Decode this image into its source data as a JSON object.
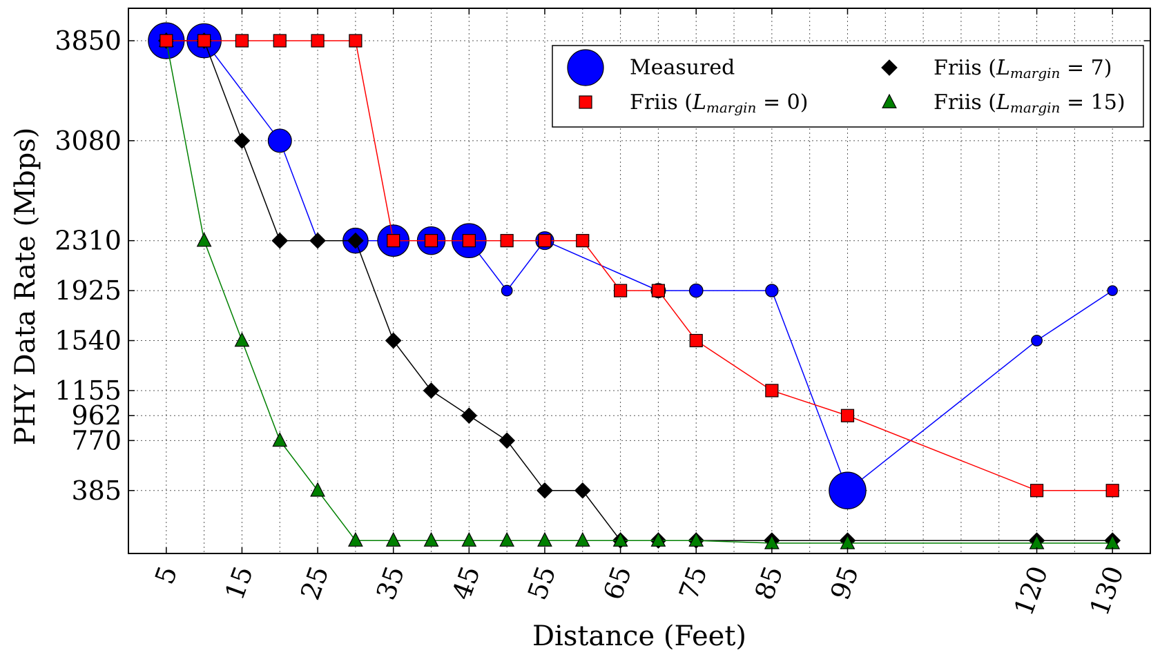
{
  "chart_data": {
    "type": "line",
    "title": "",
    "xlabel": "Distance (Feet)",
    "ylabel": "PHY Data Rate (Mbps)",
    "xlim": [
      0,
      135
    ],
    "ylim": [
      -100,
      4100
    ],
    "grid": true,
    "legend_position": "top-right",
    "x_ticks": [
      5,
      15,
      25,
      35,
      45,
      55,
      65,
      75,
      85,
      95,
      120,
      130
    ],
    "y_ticks": [
      385,
      770,
      962,
      1155,
      1540,
      1925,
      2310,
      3080,
      3850
    ],
    "series": [
      {
        "name": "Measured",
        "legend_label": "Measured",
        "color": "#0000ff",
        "marker": "circle",
        "points": [
          {
            "x": 5,
            "y": 3850,
            "size": 2.0
          },
          {
            "x": 10,
            "y": 3850,
            "size": 1.9
          },
          {
            "x": 20,
            "y": 3080,
            "size": 1.3
          },
          {
            "x": 25,
            "y": 2310,
            "size": 0.5
          },
          {
            "x": 30,
            "y": 2310,
            "size": 1.4
          },
          {
            "x": 35,
            "y": 2310,
            "size": 1.75
          },
          {
            "x": 40,
            "y": 2310,
            "size": 1.55
          },
          {
            "x": 45,
            "y": 2310,
            "size": 1.9
          },
          {
            "x": 50,
            "y": 1925,
            "size": 0.6
          },
          {
            "x": 55,
            "y": 2310,
            "size": 1.0
          },
          {
            "x": 70,
            "y": 1925,
            "size": 0.8
          },
          {
            "x": 75,
            "y": 1925,
            "size": 0.75
          },
          {
            "x": 85,
            "y": 1925,
            "size": 0.7
          },
          {
            "x": 95,
            "y": 385,
            "size": 2.05
          },
          {
            "x": 120,
            "y": 1540,
            "size": 0.6
          },
          {
            "x": 130,
            "y": 1925,
            "size": 0.55
          }
        ]
      },
      {
        "name": "Friis (L_margin = 0)",
        "legend_label": "Friis (",
        "legend_eq": "= 0)",
        "color": "#ff0000",
        "marker": "square",
        "points": [
          {
            "x": 5,
            "y": 3850
          },
          {
            "x": 10,
            "y": 3850
          },
          {
            "x": 15,
            "y": 3850
          },
          {
            "x": 20,
            "y": 3850
          },
          {
            "x": 25,
            "y": 3850
          },
          {
            "x": 30,
            "y": 3850
          },
          {
            "x": 35,
            "y": 2310
          },
          {
            "x": 40,
            "y": 2310
          },
          {
            "x": 45,
            "y": 2310
          },
          {
            "x": 50,
            "y": 2310
          },
          {
            "x": 55,
            "y": 2310
          },
          {
            "x": 60,
            "y": 2310
          },
          {
            "x": 65,
            "y": 1925
          },
          {
            "x": 70,
            "y": 1925
          },
          {
            "x": 75,
            "y": 1540
          },
          {
            "x": 85,
            "y": 1155
          },
          {
            "x": 95,
            "y": 962
          },
          {
            "x": 120,
            "y": 385
          },
          {
            "x": 130,
            "y": 385
          }
        ]
      },
      {
        "name": "Friis (L_margin = 7)",
        "legend_label": "Friis (",
        "legend_eq": "= 7)",
        "color": "#000000",
        "marker": "diamond",
        "points": [
          {
            "x": 5,
            "y": 3850
          },
          {
            "x": 10,
            "y": 3850
          },
          {
            "x": 15,
            "y": 3080
          },
          {
            "x": 20,
            "y": 2310
          },
          {
            "x": 25,
            "y": 2310
          },
          {
            "x": 30,
            "y": 2310
          },
          {
            "x": 35,
            "y": 1540
          },
          {
            "x": 40,
            "y": 1155
          },
          {
            "x": 45,
            "y": 962
          },
          {
            "x": 50,
            "y": 770
          },
          {
            "x": 55,
            "y": 385
          },
          {
            "x": 60,
            "y": 385
          },
          {
            "x": 65,
            "y": 0
          },
          {
            "x": 70,
            "y": 0
          },
          {
            "x": 75,
            "y": 0
          },
          {
            "x": 85,
            "y": 0
          },
          {
            "x": 95,
            "y": 0
          },
          {
            "x": 120,
            "y": 0
          },
          {
            "x": 130,
            "y": 0
          }
        ]
      },
      {
        "name": "Friis (L_margin = 15)",
        "legend_label": "Friis (",
        "legend_eq": "= 15)",
        "color": "#008000",
        "marker": "triangle",
        "points": [
          {
            "x": 5,
            "y": 3850
          },
          {
            "x": 10,
            "y": 2310
          },
          {
            "x": 15,
            "y": 1540
          },
          {
            "x": 20,
            "y": 770
          },
          {
            "x": 25,
            "y": 385
          },
          {
            "x": 30,
            "y": 0
          },
          {
            "x": 35,
            "y": 0
          },
          {
            "x": 40,
            "y": 0
          },
          {
            "x": 45,
            "y": 0
          },
          {
            "x": 50,
            "y": 0
          },
          {
            "x": 55,
            "y": 0
          },
          {
            "x": 60,
            "y": 0
          },
          {
            "x": 65,
            "y": 0
          },
          {
            "x": 70,
            "y": 0
          },
          {
            "x": 75,
            "y": 0
          },
          {
            "x": 85,
            "y": -20
          },
          {
            "x": 95,
            "y": -20
          },
          {
            "x": 120,
            "y": -20
          },
          {
            "x": 130,
            "y": -20
          }
        ]
      }
    ],
    "legend_symbol": "L",
    "legend_subscript": "margin",
    "legend_order": [
      0,
      2,
      1,
      3
    ]
  }
}
